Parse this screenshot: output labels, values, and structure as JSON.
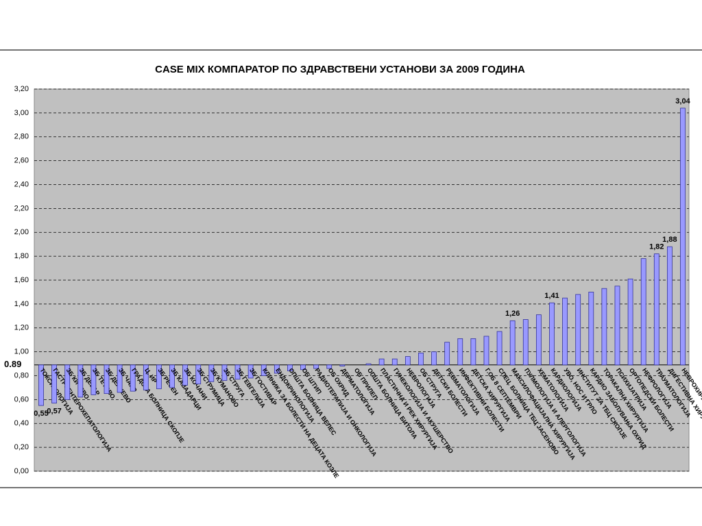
{
  "chart_data": {
    "type": "bar",
    "title": "CASE MIX  КОМПАРАТОР ПО ЗДРАВСТВЕНИ УСТАНОВИ ЗА  2009 ГОДИНА",
    "baseline": 0.89,
    "categories": [
      "ТОКСИКОЛОГИЈА",
      "ГАСТРОЕНТЕРОХЕПАТОЛОГИЈА",
      "ЗБ КИЧЕВО",
      "ЗБ ДЕБАР",
      "ЗБ ТЕТОВО",
      "ЗБ ДЕЛЧЕВО",
      "ЗБ ЧАИР",
      "ГРАДСКА БОЛНИЦА СКОПЈЕ",
      "Ц. ИР",
      "ЗБ РЕСЕН",
      "ЗБ КАВАДАРЦИ",
      "ЗБ КОЧАНИ",
      "ЗБ СТРУМИЦА",
      "ЗБ КУМАНОВО",
      "ЗБ СТРУГА",
      "ЗБ ГЕВГЕЛИЈА",
      "ЗБ ГОСТИВАР",
      "КЛИНИКА ЗА БОЛЕСТИ НА ДЕЦАТА КОЗЛЕ",
      "ЕНДОКРИНОЛОГИЈА",
      "ОПШТА БОЛНИЦА ВЕЛЕС",
      "ОБ ШТИП",
      "РАДИОТЕРАПИЈА И ОНКОЛОГИЈА",
      "ОБ ОХРИД",
      "ДЕРМАТОЛОГИЈА",
      "ОБ ПРИЛЕП",
      "ОПШТА БОЛНИЦА БИТОЛА",
      "ПЛАСТИЧНА И РЕК ХИРУРГИЈА",
      "ГИНЕКОЛОГИЈА И АКУШЕРСТВО",
      "НЕВРОЛОГИЈА",
      "ОБ СТРУГА",
      "ДЕТСКИ БОЛЕСТИ",
      "РЕВМАТОЛОГИЈА",
      "ИНФЕКТИВНИ БОЛЕСТИ",
      "ДЕТСКА ХИРУРГИЈА",
      "Г.ОБ 8 СЕПТЕМВРИ",
      "СПЕЦ. БОЛНИЦА ТБЦ ЈАСЕНОВО",
      "МАКСИЛОФАЦИЈАЛНА ХИРУРГИЈА",
      "ПУЛМОЛОГИЈА И АЛЕРГОЛОГИЈА",
      "ХЕМАТОЛОГИЈА",
      "КАРДИОЛОГИЈА",
      "УВО, НОС И ГРЛО",
      "ИНСТИТУТ ЗА ТБЦ СКОПЈЕ",
      "КАРДИО ЗАБОЛУВАЊА ОХРИД",
      "ТОРАКАЛНА ХИРУРГИЈА",
      "ПСИХИЈАТРИЈА",
      "ОРТОПЕДСКИ БОЛЕСТИ",
      "НЕФРОЛОГИЈА",
      "ТРАУМАТОЛОГИЈА",
      "ДИГЕСТИВНА ХИРУРГИЈА",
      "НЕВРОХИРУРГИЈА"
    ],
    "values": [
      0.55,
      0.57,
      0.6,
      0.62,
      0.64,
      0.65,
      0.66,
      0.67,
      0.68,
      0.69,
      0.7,
      0.72,
      0.73,
      0.75,
      0.76,
      0.77,
      0.78,
      0.8,
      0.82,
      0.84,
      0.85,
      0.86,
      0.86,
      0.88,
      0.89,
      0.9,
      0.94,
      0.94,
      0.96,
      0.99,
      1.0,
      1.08,
      1.11,
      1.11,
      1.13,
      1.17,
      1.26,
      1.27,
      1.31,
      1.41,
      1.45,
      1.48,
      1.5,
      1.53,
      1.55,
      1.61,
      1.78,
      1.82,
      1.88,
      3.04
    ],
    "value_labels": [
      "0,55",
      "0,57",
      null,
      null,
      null,
      null,
      null,
      null,
      null,
      null,
      null,
      null,
      null,
      null,
      null,
      null,
      null,
      null,
      null,
      null,
      null,
      null,
      null,
      null,
      null,
      null,
      null,
      null,
      null,
      null,
      null,
      null,
      null,
      null,
      null,
      null,
      "1,26",
      null,
      null,
      "1,41",
      null,
      null,
      null,
      null,
      null,
      null,
      null,
      "1,82",
      "1,88",
      "3,04"
    ],
    "color": "#9999ff",
    "ylim": [
      0,
      3.2
    ],
    "yticks": [
      {
        "value": 0,
        "label": "0,00"
      },
      {
        "value": 0.2,
        "label": "0,20"
      },
      {
        "value": 0.4,
        "label": "0,40"
      },
      {
        "value": 0.6,
        "label": "0,60"
      },
      {
        "value": 0.8,
        "label": "0,80"
      },
      {
        "value": 1.0,
        "label": "1,00"
      },
      {
        "value": 1.2,
        "label": "1,20"
      },
      {
        "value": 1.4,
        "label": "1,40"
      },
      {
        "value": 1.6,
        "label": "1,60"
      },
      {
        "value": 1.8,
        "label": "1,80"
      },
      {
        "value": 2.0,
        "label": "2,00"
      },
      {
        "value": 2.2,
        "label": "2,20"
      },
      {
        "value": 2.4,
        "label": "2,40"
      },
      {
        "value": 2.6,
        "label": "2,60"
      },
      {
        "value": 2.8,
        "label": "2,80"
      },
      {
        "value": 3.0,
        "label": "3,00"
      },
      {
        "value": 3.2,
        "label": "3,20"
      }
    ],
    "grid": true
  }
}
